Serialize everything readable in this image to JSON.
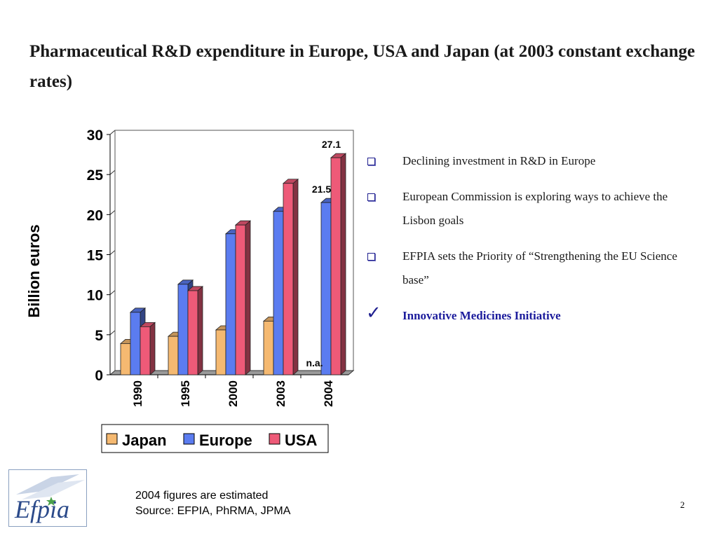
{
  "slide": {
    "title": "Pharmaceutical R&D expenditure in Europe, USA and Japan (at 2003 constant exchange rates)",
    "bullets": [
      {
        "text": "Declining investment in R&D in Europe",
        "marker": "square"
      },
      {
        "text": "European Commission is exploring ways to achieve the Lisbon goals",
        "marker": "square"
      },
      {
        "text": "EFPIA sets the Priority of “Strengthening the EU Science base”",
        "marker": "square"
      },
      {
        "text": "Innovative Medicines Initiative",
        "marker": "check",
        "highlight": true
      }
    ],
    "footnote_line1": "2004 figures are estimated",
    "footnote_line2": "Source: EFPIA, PhRMA, JPMA",
    "page_number": "2",
    "logo_text": "Efpia"
  },
  "chart_data": {
    "type": "bar",
    "title": "",
    "xlabel": "",
    "ylabel": "Billion euros",
    "ylim": [
      0,
      30
    ],
    "yticks": [
      0,
      5,
      10,
      15,
      20,
      25,
      30
    ],
    "categories": [
      "1990",
      "1995",
      "2000",
      "2003",
      "2004"
    ],
    "series": [
      {
        "name": "Japan",
        "values": [
          3.9,
          4.8,
          5.6,
          6.7,
          null
        ],
        "color": "#f5b971"
      },
      {
        "name": "Europe",
        "values": [
          7.8,
          11.3,
          17.6,
          20.4,
          21.5
        ],
        "color": "#5b7cf0"
      },
      {
        "name": "USA",
        "values": [
          6.0,
          10.5,
          18.7,
          23.9,
          27.1
        ],
        "color": "#ee5a78"
      }
    ],
    "annotations": [
      {
        "category": "2004",
        "series": "USA",
        "text": "27.1"
      },
      {
        "category": "2004",
        "series": "Europe",
        "text": "21.5"
      },
      {
        "category": "2004",
        "series": "Japan",
        "text": "n.a."
      }
    ],
    "grid": true,
    "legend": "bottom"
  }
}
